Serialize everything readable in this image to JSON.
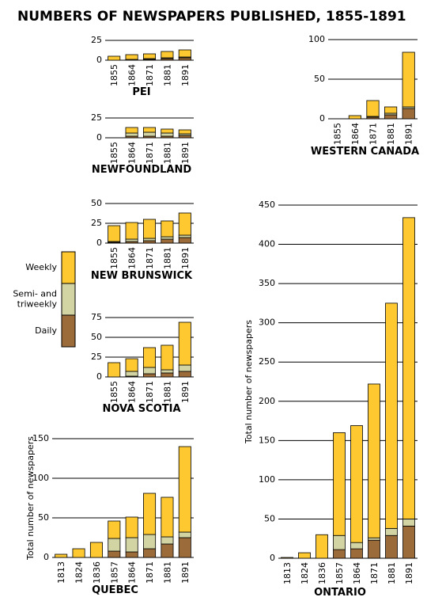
{
  "title": "NUMBERS OF NEWSPAPERS PUBLISHED, 1855-1891",
  "legend": [
    {
      "name": "Daily",
      "color": "#9b6b3a"
    },
    {
      "name": "Semi- and triweekly",
      "color": "#d3d4a4"
    },
    {
      "name": "Weekly",
      "color": "#fdc830"
    }
  ],
  "chart_data": [
    {
      "type": "bar",
      "stacked": true,
      "title": "PEI",
      "categories": [
        "1855",
        "1864",
        "1871",
        "1881",
        "1891"
      ],
      "series": [
        {
          "values": [
            0,
            0,
            1,
            2,
            3
          ]
        },
        {
          "values": [
            0,
            1,
            1,
            1,
            1
          ]
        },
        {
          "values": [
            5,
            6,
            6,
            8,
            9
          ]
        }
      ],
      "ylim": [
        0,
        25
      ],
      "yticks": [
        0,
        25
      ],
      "grid": true
    },
    {
      "type": "bar",
      "stacked": true,
      "title": "NEWFOUNDLAND",
      "categories": [
        "1855",
        "1864",
        "1871",
        "1881",
        "1891"
      ],
      "series": [
        {
          "values": [
            0,
            2,
            2,
            2,
            3
          ]
        },
        {
          "values": [
            0,
            4,
            5,
            4,
            2
          ]
        },
        {
          "values": [
            0,
            7,
            6,
            5,
            5
          ]
        }
      ],
      "ylim": [
        0,
        25
      ],
      "yticks": [
        0,
        25
      ],
      "grid": true
    },
    {
      "type": "bar",
      "stacked": true,
      "title": "NEW BRUNSWICK",
      "categories": [
        "1855",
        "1864",
        "1871",
        "1881",
        "1891"
      ],
      "series": [
        {
          "values": [
            1,
            2,
            3,
            5,
            7
          ]
        },
        {
          "values": [
            1,
            3,
            3,
            3,
            3
          ]
        },
        {
          "values": [
            20,
            21,
            24,
            20,
            28
          ]
        }
      ],
      "ylim": [
        0,
        50
      ],
      "yticks": [
        0,
        25,
        50
      ],
      "grid": true
    },
    {
      "type": "bar",
      "stacked": true,
      "title": "NOVA SCOTIA",
      "categories": [
        "1855",
        "1864",
        "1871",
        "1881",
        "1891"
      ],
      "series": [
        {
          "values": [
            0,
            1,
            4,
            5,
            7
          ]
        },
        {
          "values": [
            0,
            6,
            8,
            4,
            8
          ]
        },
        {
          "values": [
            18,
            16,
            25,
            31,
            54
          ]
        }
      ],
      "ylim": [
        0,
        75
      ],
      "yticks": [
        0,
        25,
        50,
        75
      ],
      "grid": true
    },
    {
      "type": "bar",
      "stacked": true,
      "title": "QUEBEC",
      "ylabel": "Total number of newspapers",
      "categories": [
        "1813",
        "1824",
        "1836",
        "1857",
        "1864",
        "1871",
        "1881",
        "1891"
      ],
      "series": [
        {
          "values": [
            0,
            0,
            0,
            8,
            7,
            11,
            17,
            25
          ]
        },
        {
          "values": [
            0,
            0,
            0,
            16,
            18,
            18,
            9,
            7
          ]
        },
        {
          "values": [
            4,
            11,
            19,
            22,
            26,
            52,
            50,
            108
          ]
        }
      ],
      "ylim": [
        0,
        150
      ],
      "yticks": [
        0,
        50,
        100,
        150
      ],
      "grid": true
    },
    {
      "type": "bar",
      "stacked": true,
      "title": "WESTERN CANADA",
      "categories": [
        "1855",
        "1864",
        "1871",
        "1881",
        "1891"
      ],
      "series": [
        {
          "values": [
            0,
            0,
            2,
            5,
            13
          ]
        },
        {
          "values": [
            0,
            0,
            1,
            2,
            2
          ]
        },
        {
          "values": [
            0,
            4,
            20,
            8,
            69
          ]
        }
      ],
      "ylim": [
        0,
        100
      ],
      "yticks": [
        0,
        50,
        100
      ],
      "grid": true
    },
    {
      "type": "bar",
      "stacked": true,
      "title": "ONTARIO",
      "ylabel": "Total number of newspapers",
      "categories": [
        "1813",
        "1824",
        "1836",
        "1857",
        "1864",
        "1871",
        "1881",
        "1891"
      ],
      "series": [
        {
          "values": [
            0,
            0,
            0,
            11,
            12,
            23,
            29,
            41
          ]
        },
        {
          "values": [
            0,
            0,
            0,
            18,
            8,
            3,
            9,
            9
          ]
        },
        {
          "values": [
            1,
            7,
            30,
            131,
            149,
            196,
            287,
            384
          ]
        }
      ],
      "ylim": [
        0,
        450
      ],
      "yticks": [
        0,
        50,
        100,
        150,
        200,
        250,
        300,
        350,
        400,
        450
      ],
      "grid": true
    }
  ]
}
